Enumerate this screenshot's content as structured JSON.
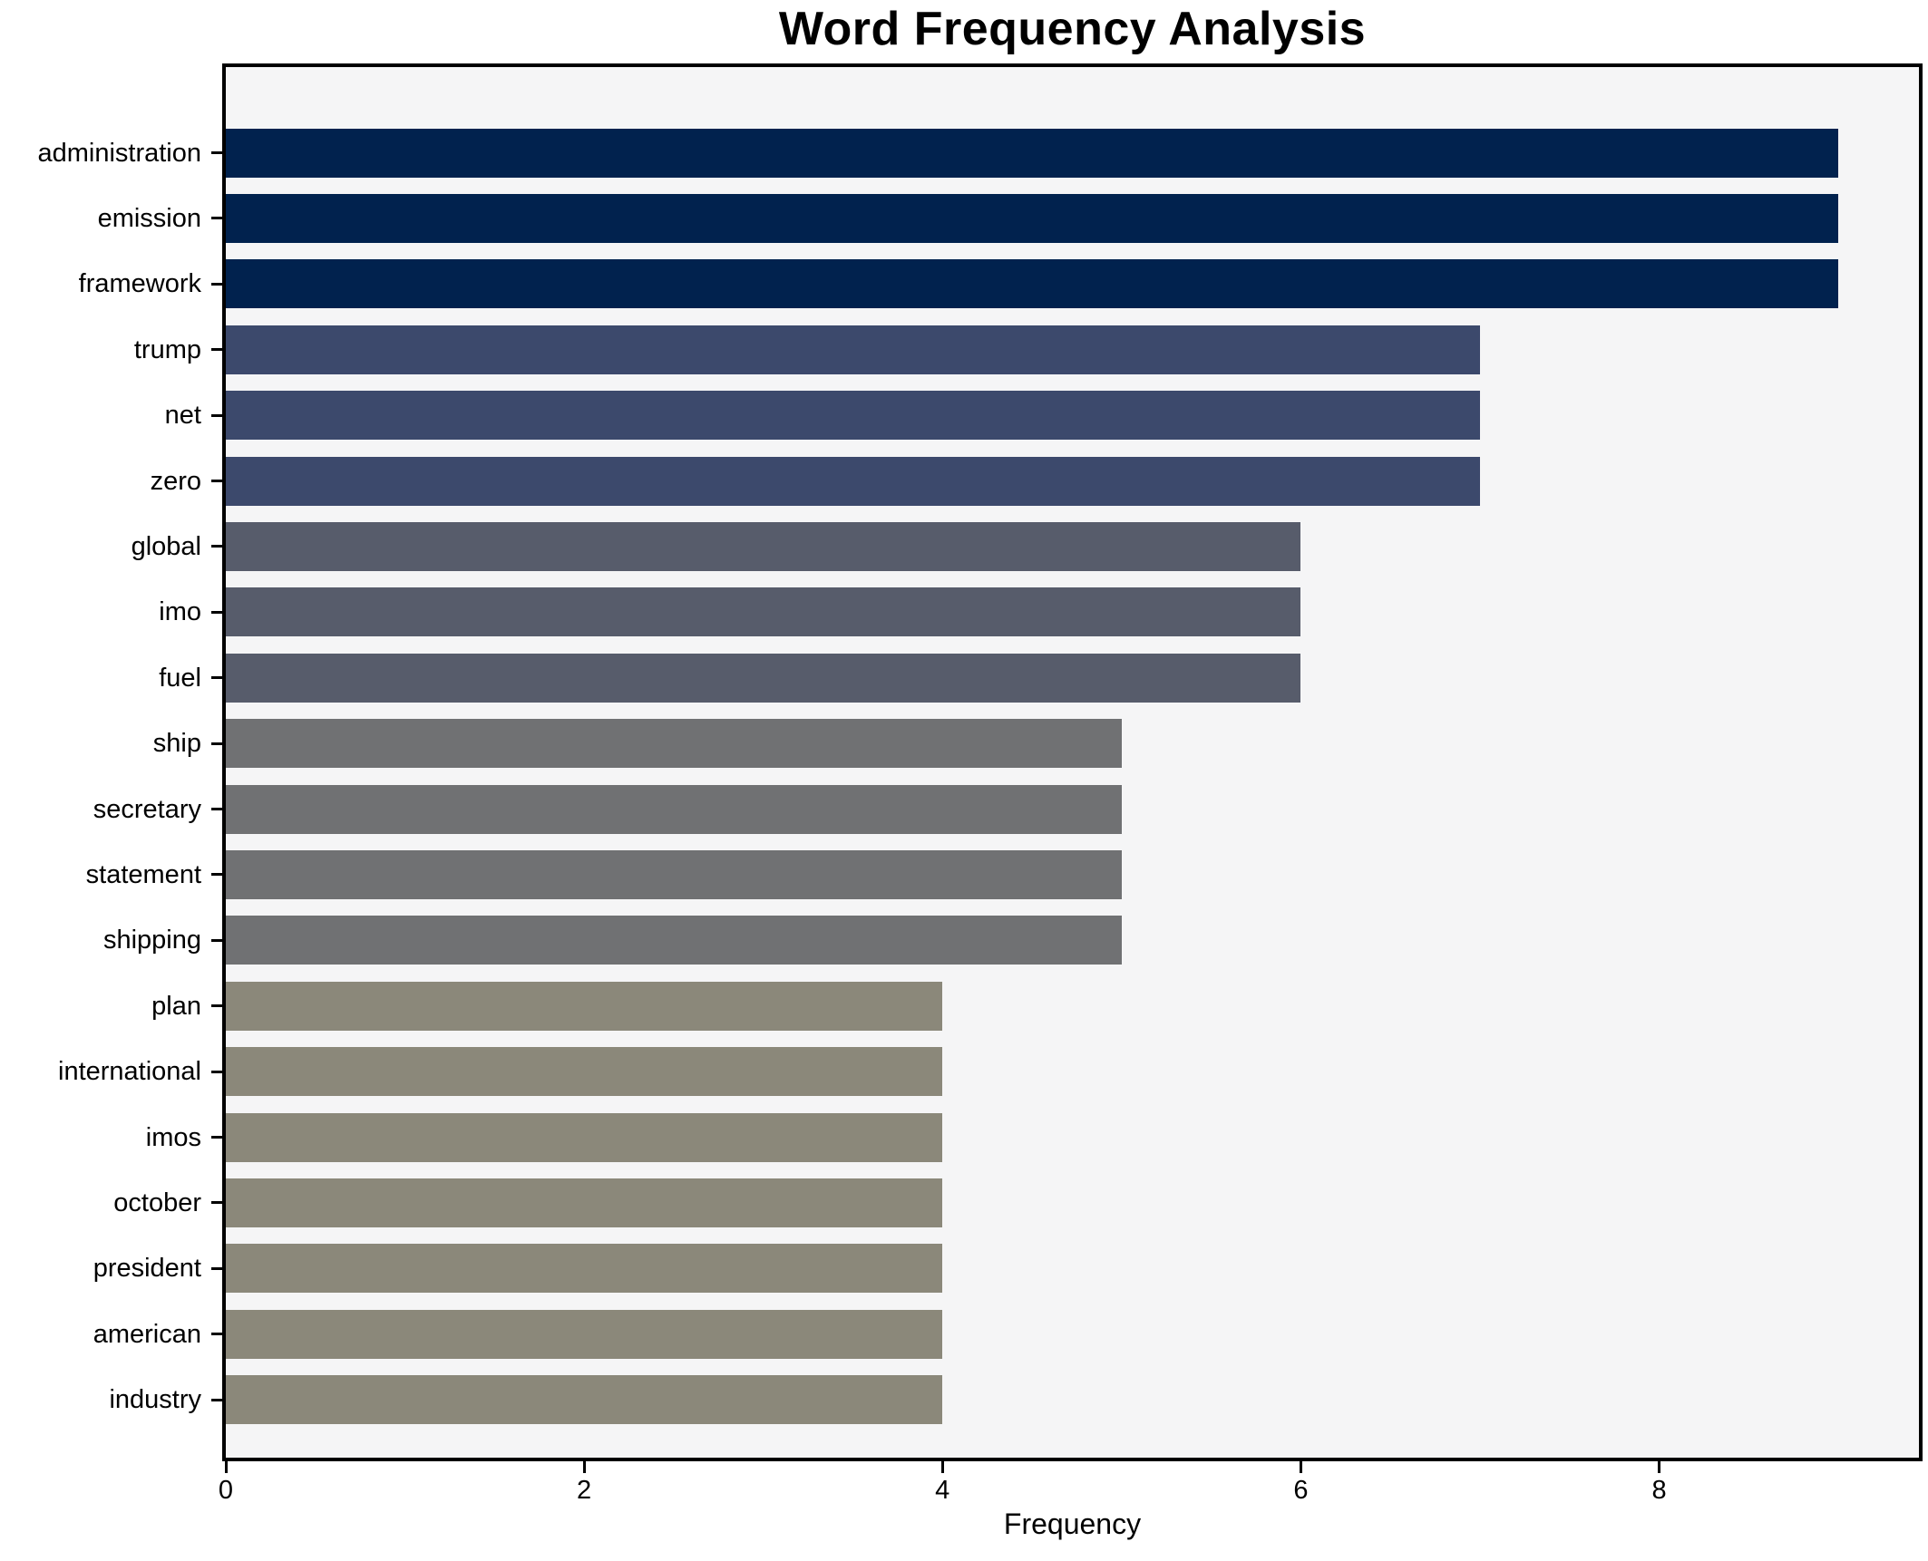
{
  "chart_data": {
    "type": "bar",
    "orientation": "horizontal",
    "title": "Word Frequency Analysis",
    "xlabel": "Frequency",
    "ylabel": "",
    "categories": [
      "administration",
      "emission",
      "framework",
      "trump",
      "net",
      "zero",
      "global",
      "imo",
      "fuel",
      "ship",
      "secretary",
      "statement",
      "shipping",
      "plan",
      "international",
      "imos",
      "october",
      "president",
      "american",
      "industry"
    ],
    "values": [
      9,
      9,
      9,
      7,
      7,
      7,
      6,
      6,
      6,
      5,
      5,
      5,
      5,
      4,
      4,
      4,
      4,
      4,
      4,
      4
    ],
    "bar_colors": [
      "#01224e",
      "#01224e",
      "#01224e",
      "#3c496c",
      "#3c496c",
      "#3c496c",
      "#575c6b",
      "#575c6b",
      "#575c6b",
      "#707173",
      "#707173",
      "#707173",
      "#707173",
      "#8b887a",
      "#8b887a",
      "#8b887a",
      "#8b887a",
      "#8b887a",
      "#8b887a",
      "#8b887a"
    ],
    "xticks": [
      0,
      2,
      4,
      6,
      8
    ],
    "xlim": [
      0,
      9.45
    ],
    "grid": false,
    "legend": false,
    "plot_background": "#f5f5f6",
    "figure_background": "#ffffff",
    "spine_color": "#000000",
    "text_color": "#000000"
  }
}
